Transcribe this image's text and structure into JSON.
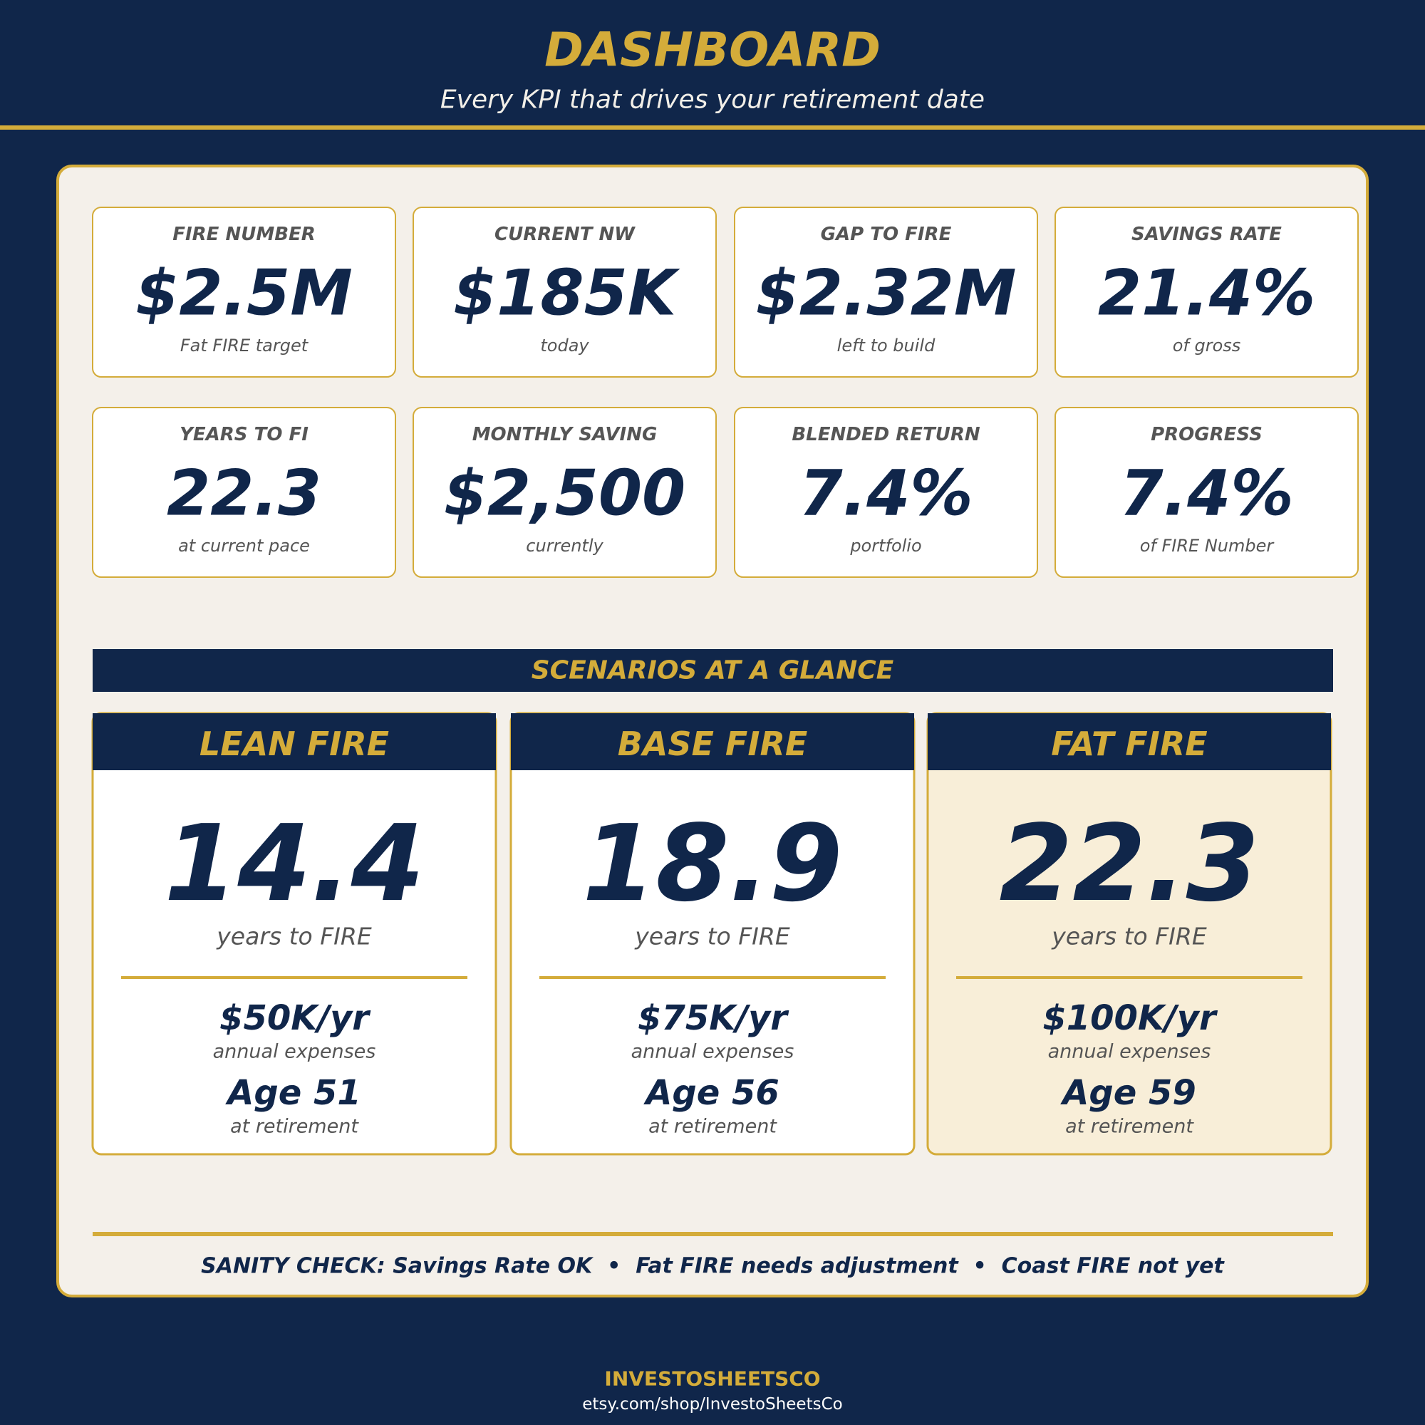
{
  "header": {
    "title": "DASHBOARD",
    "subtitle": "Every KPI that drives your retirement date"
  },
  "kpis": [
    {
      "label": "FIRE NUMBER",
      "value": "$2.5M",
      "note": "Fat FIRE target"
    },
    {
      "label": "CURRENT NW",
      "value": "$185K",
      "note": "today"
    },
    {
      "label": "GAP TO FIRE",
      "value": "$2.32M",
      "note": "left to build"
    },
    {
      "label": "SAVINGS RATE",
      "value": "21.4%",
      "note": "of gross"
    },
    {
      "label": "YEARS TO FI",
      "value": "22.3",
      "note": "at current pace"
    },
    {
      "label": "MONTHLY SAVING",
      "value": "$2,500",
      "note": "currently"
    },
    {
      "label": "BLENDED RETURN",
      "value": "7.4%",
      "note": "portfolio"
    },
    {
      "label": "PROGRESS",
      "value": "7.4%",
      "note": "of FIRE Number"
    }
  ],
  "scenarios": {
    "heading": "SCENARIOS AT A GLANCE",
    "cards": [
      {
        "name": "LEAN FIRE",
        "years": "14.4",
        "years_note": "years to FIRE",
        "expenses": "$50K/yr",
        "expenses_note": "annual expenses",
        "age": "Age 51",
        "age_note": "at retirement"
      },
      {
        "name": "BASE FIRE",
        "years": "18.9",
        "years_note": "years to FIRE",
        "expenses": "$75K/yr",
        "expenses_note": "annual expenses",
        "age": "Age 56",
        "age_note": "at retirement"
      },
      {
        "name": "FAT FIRE",
        "years": "22.3",
        "years_note": "years to FIRE",
        "expenses": "$100K/yr",
        "expenses_note": "annual expenses",
        "age": "Age 59",
        "age_note": "at retirement"
      }
    ]
  },
  "sanity_check": "SANITY CHECK: Savings Rate OK  •  Fat FIRE needs adjustment  •  Coast FIRE not yet",
  "footer": {
    "brand": "INVESTOSHEETSCO",
    "url": "etsy.com/shop/InvestoSheetsCo"
  }
}
